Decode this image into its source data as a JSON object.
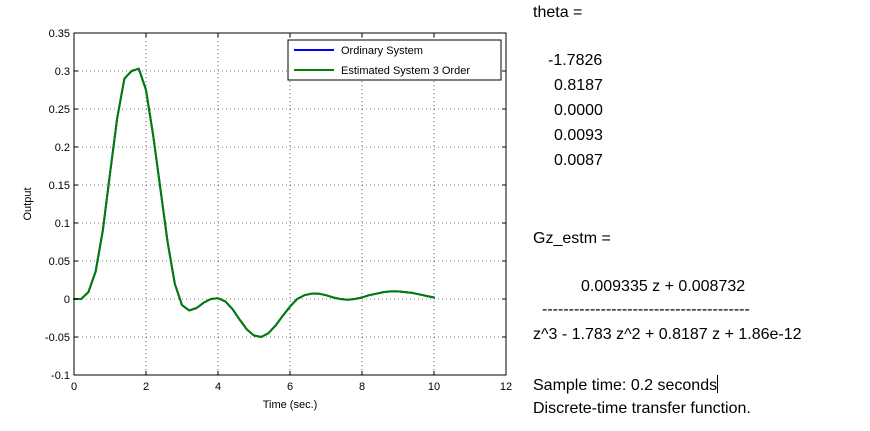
{
  "chart_data": {
    "type": "line",
    "title": "",
    "xlabel": "Time (sec.)",
    "ylabel": "Output",
    "xlim": [
      0,
      12
    ],
    "ylim": [
      -0.1,
      0.35
    ],
    "xticks": [
      "0",
      "2",
      "4",
      "6",
      "8",
      "10",
      "12"
    ],
    "yticks": [
      "-0.1",
      "-0.05",
      "0",
      "0.05",
      "0.1",
      "0.15",
      "0.2",
      "0.25",
      "0.3",
      "0.35"
    ],
    "grid": true,
    "legend_position": "top-right",
    "x": [
      0,
      0.2,
      0.4,
      0.6,
      0.8,
      1.0,
      1.2,
      1.4,
      1.6,
      1.8,
      2.0,
      2.2,
      2.4,
      2.6,
      2.8,
      3.0,
      3.2,
      3.4,
      3.6,
      3.8,
      4.0,
      4.2,
      4.4,
      4.6,
      4.8,
      5.0,
      5.2,
      5.4,
      5.6,
      5.8,
      6.0,
      6.2,
      6.4,
      6.6,
      6.8,
      7.0,
      7.2,
      7.4,
      7.6,
      7.8,
      8.0,
      8.2,
      8.4,
      8.6,
      8.8,
      9.0,
      9.2,
      9.4,
      9.6,
      9.8,
      10.0
    ],
    "series": [
      {
        "name": "Ordinary System",
        "color": "#0000ff",
        "values": [
          0,
          0,
          0.009,
          0.036,
          0.09,
          0.165,
          0.238,
          0.29,
          0.3,
          0.303,
          0.275,
          0.215,
          0.145,
          0.075,
          0.02,
          -0.008,
          -0.015,
          -0.012,
          -0.005,
          0.0,
          0.001,
          -0.003,
          -0.013,
          -0.027,
          -0.04,
          -0.048,
          -0.05,
          -0.045,
          -0.035,
          -0.022,
          -0.01,
          0.0,
          0.005,
          0.007,
          0.007,
          0.005,
          0.002,
          0.0,
          -0.001,
          0.0,
          0.002,
          0.005,
          0.007,
          0.009,
          0.01,
          0.01,
          0.009,
          0.008,
          0.006,
          0.004,
          0.002
        ]
      },
      {
        "name": "Estimated System 3 Order",
        "color": "#008000",
        "values": [
          0,
          0,
          0.009,
          0.036,
          0.09,
          0.165,
          0.238,
          0.29,
          0.3,
          0.303,
          0.275,
          0.215,
          0.145,
          0.075,
          0.02,
          -0.008,
          -0.015,
          -0.012,
          -0.005,
          0.0,
          0.001,
          -0.003,
          -0.013,
          -0.027,
          -0.04,
          -0.048,
          -0.05,
          -0.045,
          -0.035,
          -0.022,
          -0.01,
          0.0,
          0.005,
          0.007,
          0.007,
          0.005,
          0.002,
          0.0,
          -0.001,
          0.0,
          0.002,
          0.005,
          0.007,
          0.009,
          0.01,
          0.01,
          0.009,
          0.008,
          0.006,
          0.004,
          0.002
        ]
      }
    ]
  },
  "console": {
    "theta_label": "theta =",
    "theta_values": [
      "-1.7826",
      "0.8187",
      "0.0000",
      "0.0093",
      "0.0087"
    ],
    "gz_label": "Gz_estm =",
    "numerator": "0.009335 z + 0.008732",
    "fraction_bar": "---------------------------------------",
    "denominator": "z^3 - 1.783 z^2 + 0.8187 z + 1.86e-12",
    "sample_time": "Sample time: 0.2 seconds",
    "description": "Discrete-time transfer function."
  }
}
